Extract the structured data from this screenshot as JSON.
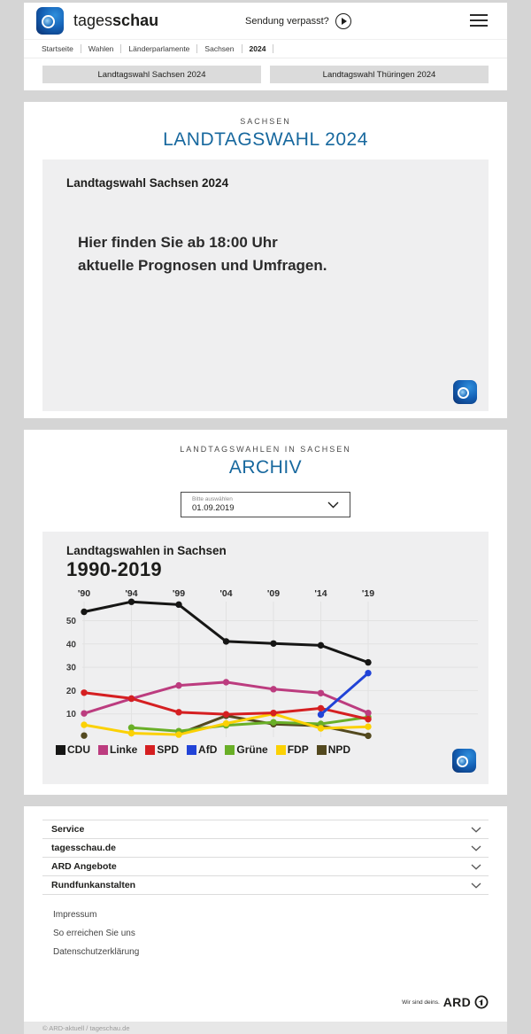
{
  "header": {
    "logo_text_regular": "tages",
    "logo_text_bold": "schau",
    "missed_label": "Sendung verpasst?",
    "breadcrumb": [
      "Startseite",
      "Wahlen",
      "Länderparlamente",
      "Sachsen",
      "2024"
    ]
  },
  "tabs": [
    {
      "label": "Landtagswahl Sachsen 2024"
    },
    {
      "label": "Landtagswahl Thüringen 2024"
    }
  ],
  "election": {
    "kicker": "SACHSEN",
    "title": "LANDTAGSWAHL 2024",
    "teaser_title": "Landtagswahl Sachsen 2024",
    "teaser_line1": "Hier finden Sie ab 18:00 Uhr",
    "teaser_line2": "aktuelle Prognosen und Umfragen."
  },
  "archive": {
    "kicker": "LANDTAGSWAHLEN IN SACHSEN",
    "title": "ARCHIV",
    "select_label": "Bitte auswählen",
    "select_value": "01.09.2019"
  },
  "chart_data": {
    "type": "line",
    "title": "Landtagswahlen in Sachsen",
    "subtitle": "1990-2019",
    "categories": [
      "'90",
      "'94",
      "'99",
      "'04",
      "'09",
      "'14",
      "'19"
    ],
    "unit": "percent",
    "ylim": [
      0,
      60
    ],
    "yticks": [
      10,
      20,
      30,
      40,
      50
    ],
    "grid": true,
    "legend_position": "bottom",
    "x_axis_position": "top",
    "draw_order": [
      "NPD",
      "Grüne",
      "FDP",
      "Linke",
      "SPD",
      "AfD",
      "CDU"
    ],
    "series": [
      {
        "name": "CDU",
        "color": "#161615",
        "values": [
          53.8,
          58.1,
          56.9,
          41.1,
          40.2,
          39.4,
          32.1
        ]
      },
      {
        "name": "Linke",
        "color": "#bc3c7f",
        "values": [
          10.2,
          16.5,
          22.2,
          23.6,
          20.6,
          18.9,
          10.4
        ]
      },
      {
        "name": "SPD",
        "color": "#d51f21",
        "values": [
          19.1,
          16.6,
          10.7,
          9.8,
          10.4,
          12.4,
          7.7
        ]
      },
      {
        "name": "AfD",
        "color": "#2143d7",
        "values": [
          null,
          null,
          null,
          null,
          null,
          9.7,
          27.5
        ]
      },
      {
        "name": "Grüne",
        "color": "#69af27",
        "values": [
          null,
          4.1,
          2.6,
          5.1,
          6.4,
          5.7,
          8.6
        ]
      },
      {
        "name": "FDP",
        "color": "#fbd104",
        "values": [
          5.3,
          1.7,
          1.1,
          5.9,
          10.0,
          3.8,
          4.5
        ]
      },
      {
        "name": "NPD",
        "color": "#53491f",
        "values": [
          0.7,
          null,
          1.4,
          9.2,
          5.6,
          4.9,
          0.6
        ]
      }
    ]
  },
  "footer": {
    "accordions": [
      {
        "label": "Service"
      },
      {
        "label": "tagesschau.de"
      },
      {
        "label": "ARD Angebote"
      },
      {
        "label": "Rundfunkanstalten"
      }
    ],
    "links": [
      {
        "label": "Impressum"
      },
      {
        "label": "So erreichen Sie uns"
      },
      {
        "label": "Datenschutzerklärung"
      }
    ],
    "ard_claim": "Wir sind deins.",
    "ard_brand": "ARD",
    "copyright": "© ARD-aktuell / tageschau.de"
  },
  "colors": {
    "page_background": "#d5d5d5",
    "card_background": "#ffffff",
    "panel_background": "#efeff0",
    "accent_blue": "#17689e",
    "tab_background": "#dbdbdb"
  }
}
